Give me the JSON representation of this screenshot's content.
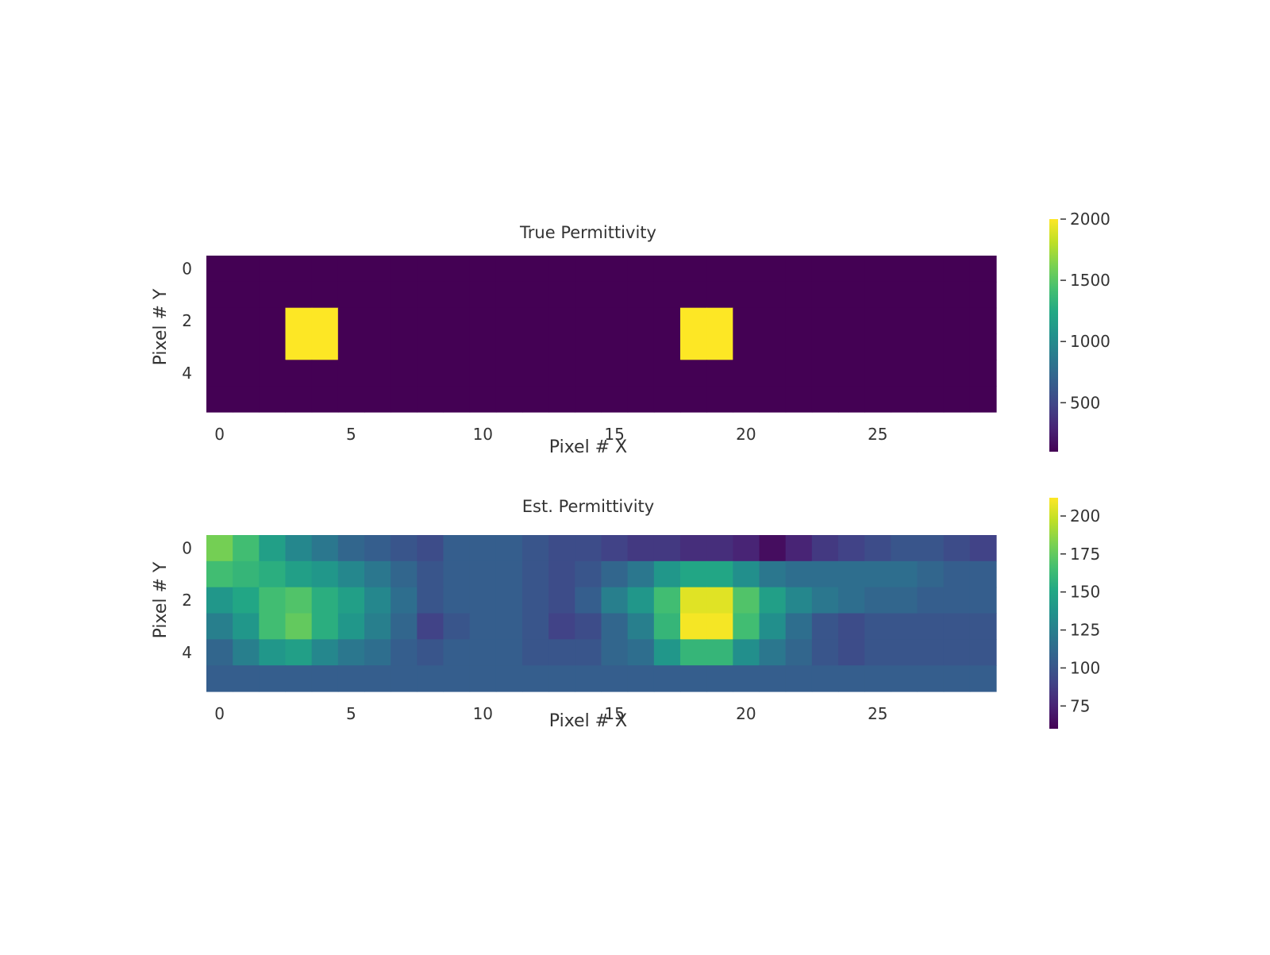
{
  "chart_data": [
    {
      "type": "heatmap",
      "title": "True Permittivity",
      "xlabel": "Pixel # X",
      "ylabel": "Pixel # Y",
      "x_ticks": [
        0,
        5,
        10,
        15,
        20,
        25
      ],
      "y_ticks": [
        0,
        2,
        4
      ],
      "colormap": "viridis",
      "vmin": 100,
      "vmax": 2000,
      "colorbar_ticks": [
        500,
        1000,
        1500,
        2000
      ],
      "values": [
        [
          100,
          100,
          100,
          100,
          100,
          100,
          100,
          100,
          100,
          100,
          100,
          100,
          100,
          100,
          100,
          100,
          100,
          100,
          100,
          100,
          100,
          100,
          100,
          100,
          100,
          100,
          100,
          100,
          100,
          100
        ],
        [
          100,
          100,
          100,
          100,
          100,
          100,
          100,
          100,
          100,
          100,
          100,
          100,
          100,
          100,
          100,
          100,
          100,
          100,
          100,
          100,
          100,
          100,
          100,
          100,
          100,
          100,
          100,
          100,
          100,
          100
        ],
        [
          100,
          100,
          100,
          2000,
          2000,
          100,
          100,
          100,
          100,
          100,
          100,
          100,
          100,
          100,
          100,
          100,
          100,
          100,
          2000,
          2000,
          100,
          100,
          100,
          100,
          100,
          100,
          100,
          100,
          100,
          100
        ],
        [
          100,
          100,
          100,
          2000,
          2000,
          100,
          100,
          100,
          100,
          100,
          100,
          100,
          100,
          100,
          100,
          100,
          100,
          100,
          2000,
          2000,
          100,
          100,
          100,
          100,
          100,
          100,
          100,
          100,
          100,
          100
        ],
        [
          100,
          100,
          100,
          100,
          100,
          100,
          100,
          100,
          100,
          100,
          100,
          100,
          100,
          100,
          100,
          100,
          100,
          100,
          100,
          100,
          100,
          100,
          100,
          100,
          100,
          100,
          100,
          100,
          100,
          100
        ],
        [
          100,
          100,
          100,
          100,
          100,
          100,
          100,
          100,
          100,
          100,
          100,
          100,
          100,
          100,
          100,
          100,
          100,
          100,
          100,
          100,
          100,
          100,
          100,
          100,
          100,
          100,
          100,
          100,
          100,
          100
        ]
      ]
    },
    {
      "type": "heatmap",
      "title": "Est. Permittivity",
      "xlabel": "Pixel # X",
      "ylabel": "Pixel # Y",
      "x_ticks": [
        0,
        5,
        10,
        15,
        20,
        25
      ],
      "y_ticks": [
        0,
        2,
        4
      ],
      "colormap": "viridis",
      "vmin": 60,
      "vmax": 212,
      "colorbar_ticks": [
        75,
        100,
        125,
        150,
        175,
        200
      ],
      "values": [
        [
          180,
          165,
          145,
          130,
          120,
          110,
          105,
          100,
          95,
          105,
          105,
          105,
          100,
          95,
          95,
          90,
          85,
          85,
          80,
          80,
          75,
          65,
          75,
          85,
          90,
          95,
          100,
          100,
          95,
          90
        ],
        [
          165,
          160,
          155,
          145,
          140,
          130,
          120,
          110,
          100,
          105,
          105,
          105,
          100,
          95,
          100,
          110,
          120,
          140,
          150,
          150,
          135,
          120,
          115,
          115,
          115,
          115,
          115,
          110,
          105,
          105
        ],
        [
          140,
          150,
          165,
          170,
          155,
          145,
          130,
          115,
          100,
          105,
          105,
          105,
          100,
          95,
          105,
          125,
          140,
          165,
          205,
          205,
          170,
          145,
          130,
          120,
          115,
          110,
          110,
          105,
          105,
          105
        ],
        [
          125,
          140,
          165,
          175,
          155,
          140,
          125,
          110,
          90,
          100,
          105,
          105,
          100,
          90,
          95,
          110,
          125,
          160,
          210,
          210,
          165,
          135,
          115,
          100,
          95,
          100,
          100,
          100,
          100,
          100
        ],
        [
          110,
          125,
          140,
          145,
          130,
          120,
          115,
          105,
          100,
          105,
          105,
          105,
          100,
          100,
          100,
          110,
          115,
          140,
          160,
          160,
          135,
          120,
          110,
          100,
          95,
          100,
          100,
          100,
          100,
          100
        ],
        [
          105,
          105,
          105,
          105,
          105,
          105,
          105,
          105,
          105,
          105,
          105,
          105,
          105,
          105,
          105,
          105,
          105,
          105,
          105,
          105,
          105,
          105,
          105,
          105,
          105,
          105,
          105,
          105,
          105,
          105
        ]
      ]
    }
  ]
}
